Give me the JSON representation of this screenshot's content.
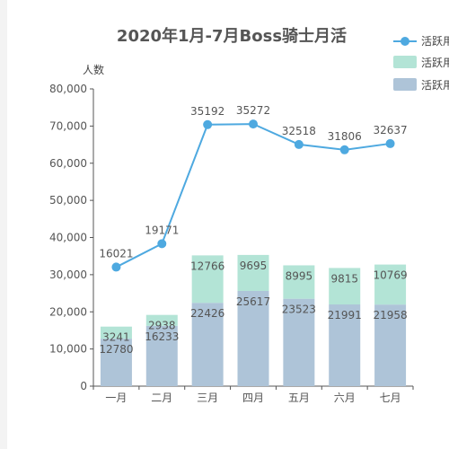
{
  "chart_data": {
    "type": "bar",
    "title": "2020年1月-7月Boss骑士月活",
    "ylabel": "人数",
    "xlabel": "",
    "categories": [
      "一月",
      "二月",
      "三月",
      "四月",
      "五月",
      "六月",
      "七月"
    ],
    "yticks": [
      "0",
      "10,000",
      "20,000",
      "30,000",
      "40,000",
      "50,000",
      "60,000",
      "70,000",
      "80,000"
    ],
    "ylim": [
      0,
      80000
    ],
    "grid": false,
    "legend_position": "top-right",
    "series": [
      {
        "name": "活跃用户",
        "kind": "line",
        "color": "#4ea9e0",
        "values": [
          16021,
          19171,
          35192,
          35272,
          32518,
          31806,
          32637
        ]
      },
      {
        "name": "活跃用户",
        "kind": "bar-stack-top",
        "color": "#b3e4d6",
        "values": [
          3241,
          2938,
          12766,
          9695,
          8995,
          9815,
          10769
        ]
      },
      {
        "name": "活跃用户",
        "kind": "bar-stack-bottom",
        "color": "#aec4d8",
        "values": [
          12780,
          16233,
          22426,
          25617,
          23523,
          21991,
          21958
        ]
      }
    ],
    "line_scale_note_values": [
      32042,
      38342,
      70384,
      70544,
      65036,
      63612,
      65274
    ]
  }
}
